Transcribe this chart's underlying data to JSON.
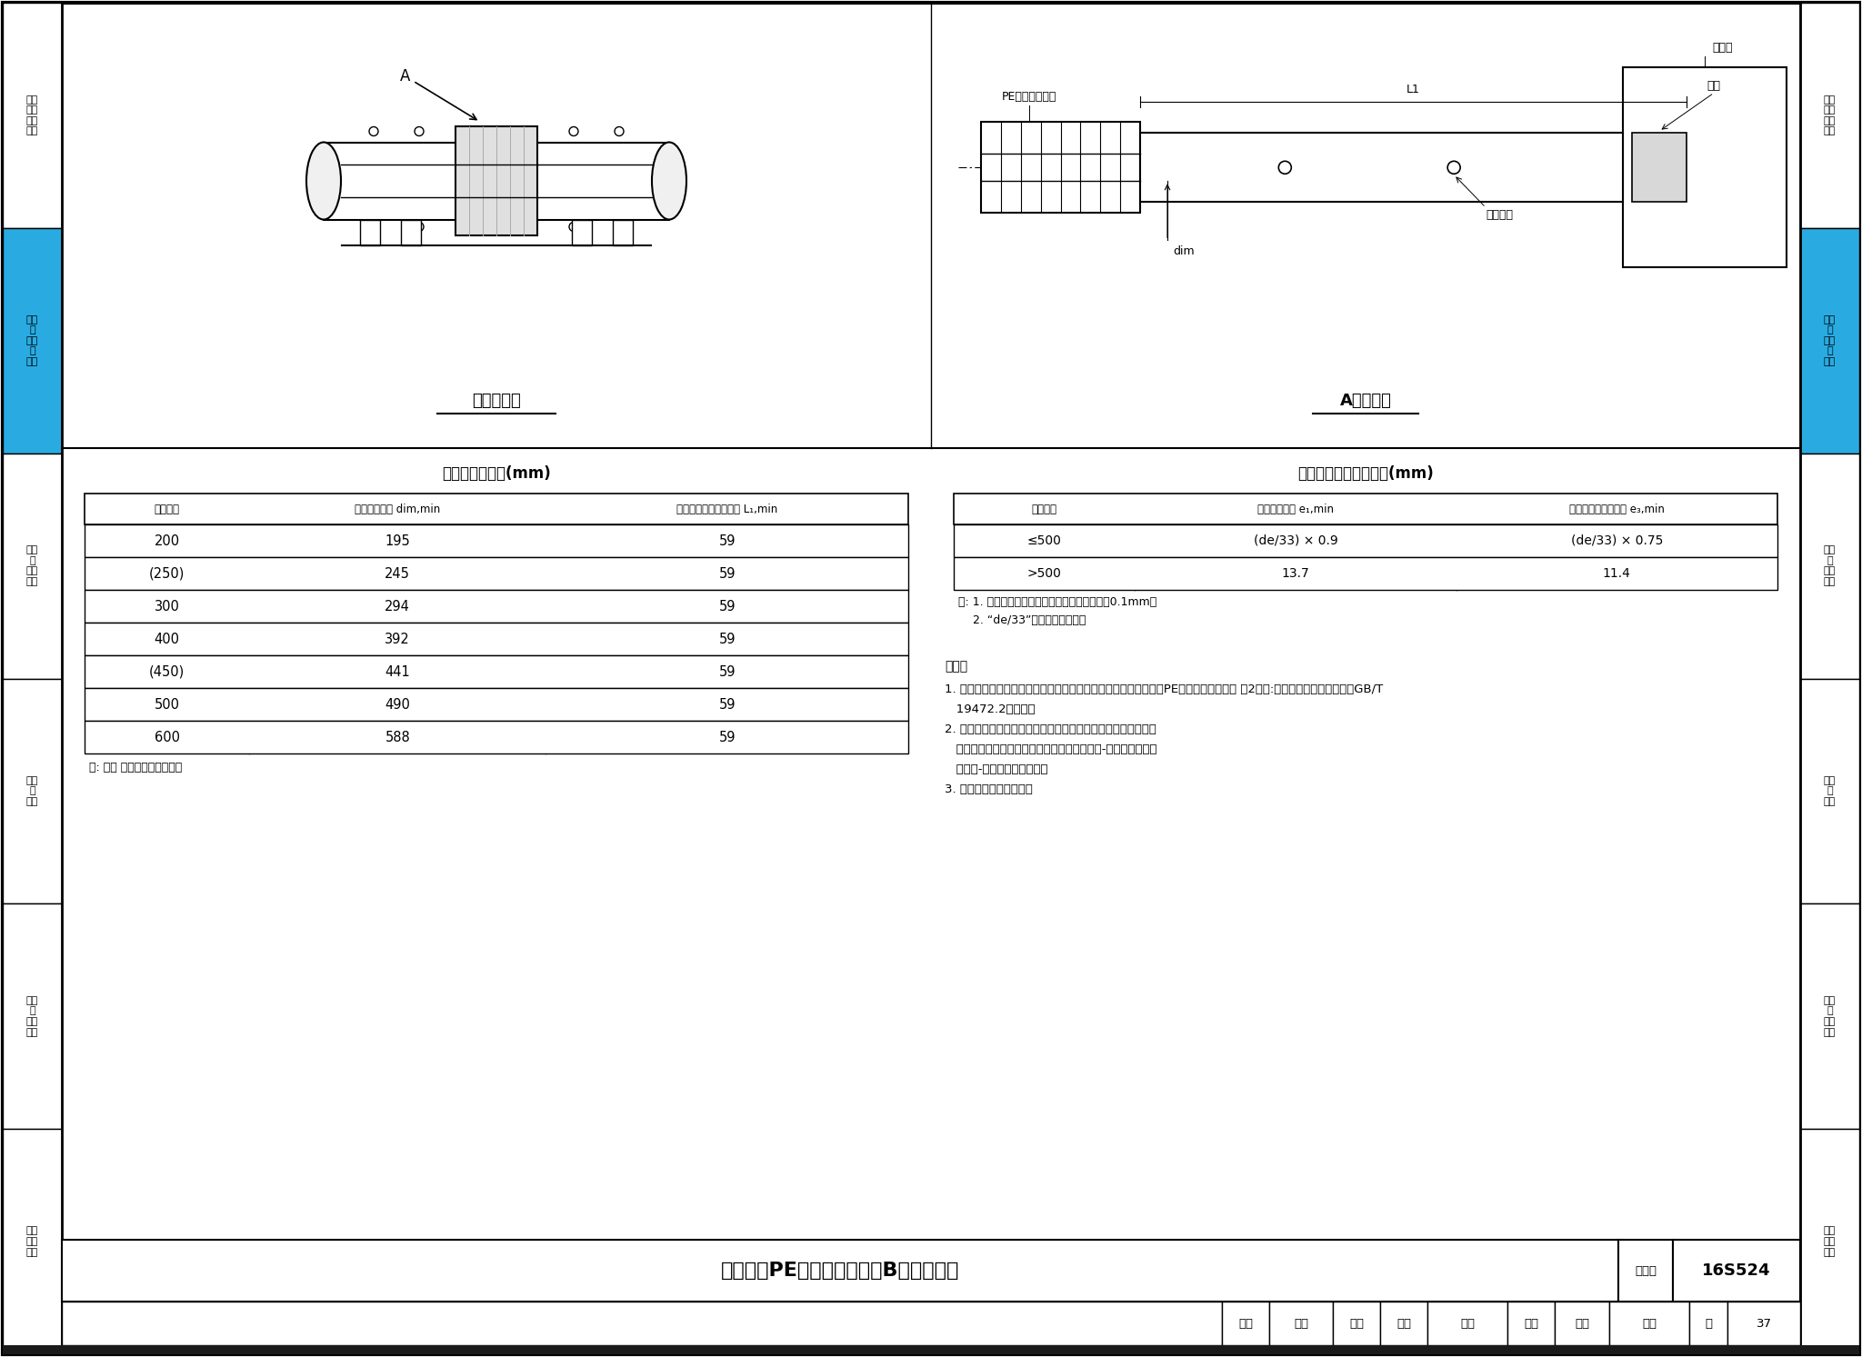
{
  "page_bg": "#ffffff",
  "border_color": "#000000",
  "left_sidebar_items": [
    "检查\n井部\n件及\n安装",
    "检查\n与\n管道\n的\n连接",
    "检查\n附\n件及\n安装",
    "检查\n井\n施工",
    "检查\n井\n结构\n计算",
    "相关\n技术\n资料"
  ],
  "right_sidebar_items": [
    "检查\n井部\n件及\n安装",
    "检查\n与\n管道\n的\n连接",
    "检查\n附\n件及\n安装",
    "检查\n井\n施工",
    "检查\n井\n结构\n计算",
    "相关\n技术\n资料"
  ],
  "active_color": "#29abe2",
  "left_diagram_title": "连接示意图",
  "right_diagram_title": "A大样详图",
  "table1_title": "承口和插口尺寸(mm)",
  "table1_headers": [
    "公称尺寸",
    "最小平均内径 dim,min",
    "电燔连接最小接合长度 L₁,min"
  ],
  "table1_rows": [
    [
      "200",
      "195",
      "59"
    ],
    [
      "(250)",
      "245",
      "59"
    ],
    [
      "300",
      "294",
      "59"
    ],
    [
      "400",
      "392",
      "59"
    ],
    [
      "(450)",
      "441",
      "59"
    ],
    [
      "500",
      "490",
      "59"
    ],
    [
      "600",
      "588",
      "59"
    ]
  ],
  "table1_note": "注: 加（ ）的为非首选尺寸。",
  "table2_title": "实壁平承口的最小壁厂(mm)",
  "table2_headers": [
    "公称尺寸",
    "最小承口壁厂 e₁,min",
    "密封件部位最小壁厂 e₃,min"
  ],
  "table2_rows": [
    [
      "≤500",
      "(de/33) × 0.9",
      "(de/33) × 0.75"
    ],
    [
      ">500",
      "13.7",
      "11.4"
    ]
  ],
  "table2_note_lines": [
    "注: 1. 数倦计算到小数点后两位，再向上取整到0.1mm。",
    "    2. “de/33”为最小插口壁厂。"
  ],
  "notes_title": "说明：",
  "notes": [
    "1. 采用结构壁管的承口和插口其最小壁厂应符合《埋地用聚乙烯（PE）结构壁管道系统 第2部分:聚乙烯缠绕结构壁管材》GB/T",
    "   19472.2的规定。",
    "2. 当井底座与接入管道因内径、外径系列尺寸或管径差异需安装",
    "   过渡接头或变径接头时，安装工序应按井底座-过渡接头（变径",
    "   接头）-接入管道顺序进行。",
    "3. 本图所示为刚性连接。"
  ],
  "bottom_title": "检查井与PE缠绕结构壁管（B型）的连接",
  "bottom_label_tuhao": "图集号",
  "bottom_tuhao_value": "16S524",
  "bottom_shenhe": "审核",
  "bottom_shenhe_name": "肖峻",
  "bottom_jiaodui": "校对",
  "bottom_jiaodui_name": "付乐",
  "bottom_sign1": "俘山",
  "bottom_sheji": "设计",
  "bottom_sheji_name": "金哲",
  "bottom_sign2": "庄嵊",
  "bottom_ye": "页",
  "bottom_ye_value": "37"
}
